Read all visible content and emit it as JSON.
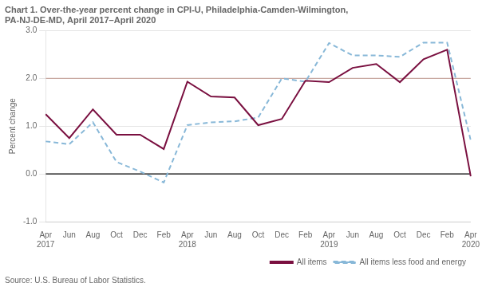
{
  "chart_data": {
    "type": "line",
    "title": [
      "Chart 1. Over-the-year percent change in CPI-U, Philadelphia-Camden-Wilmington,",
      "PA-NJ-DE-MD, April 2017–April 2020"
    ],
    "y_label": "Percent change",
    "source": "Source: U.S. Bureau of Labor Statistics.",
    "categories": [
      "Apr",
      "Jun",
      "Aug",
      "Oct",
      "Dec",
      "Feb",
      "Apr",
      "Jun",
      "Aug",
      "Oct",
      "Dec",
      "Feb",
      "Apr",
      "Jun",
      "Aug",
      "Oct",
      "Dec",
      "Feb",
      "Apr"
    ],
    "annotations": [
      {
        "x_index": 0,
        "text": "2017"
      },
      {
        "x_index": 6,
        "text": "2018"
      },
      {
        "x_index": 12,
        "text": "2019"
      },
      {
        "x_index": 18,
        "text": "2020"
      }
    ],
    "series": [
      {
        "name": "All items",
        "color": "#7a1040",
        "line_style": "solid",
        "values": [
          1.25,
          0.75,
          1.35,
          0.82,
          0.82,
          0.52,
          1.93,
          1.62,
          1.6,
          1.02,
          1.15,
          1.95,
          1.92,
          2.22,
          2.3,
          1.92,
          2.4,
          2.6,
          -0.05
        ]
      },
      {
        "name": "All items less food and energy",
        "color": "#88b8d8",
        "line_style": "dashed",
        "values": [
          0.68,
          0.62,
          1.08,
          0.25,
          0.05,
          -0.18,
          1.02,
          1.08,
          1.1,
          1.18,
          2.0,
          1.93,
          2.74,
          2.48,
          2.48,
          2.45,
          2.75,
          2.75,
          0.7
        ]
      }
    ],
    "hlines": [
      {
        "y": 0,
        "color": "#000000"
      },
      {
        "y": 2.0,
        "color": "#c8a8a0"
      }
    ],
    "ylim": [
      -1.0,
      3.0
    ],
    "yticks": [
      {
        "value": -1.0,
        "label": "-1.0"
      },
      {
        "value": 0.0,
        "label": "0.0"
      },
      {
        "value": 1.0,
        "label": "1.0"
      },
      {
        "value": 2.0,
        "label": "2.0"
      },
      {
        "value": 3.0,
        "label": "3.0"
      }
    ],
    "grid": true,
    "legend": "lower right"
  }
}
